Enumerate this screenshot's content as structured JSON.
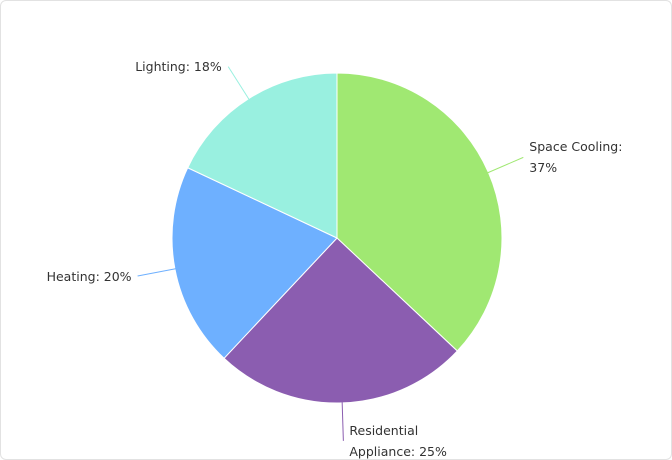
{
  "chart_data": {
    "type": "pie",
    "values": [
      37,
      25,
      20,
      18
    ],
    "value_labels": [
      "Space Cooling: 37%",
      "Residential Appliance: 25%",
      "Heating: 20%",
      "Lighting: 18%"
    ],
    "colors": [
      "#a0e872",
      "#8b5db0",
      "#6eb0ff",
      "#99f0e0"
    ]
  }
}
